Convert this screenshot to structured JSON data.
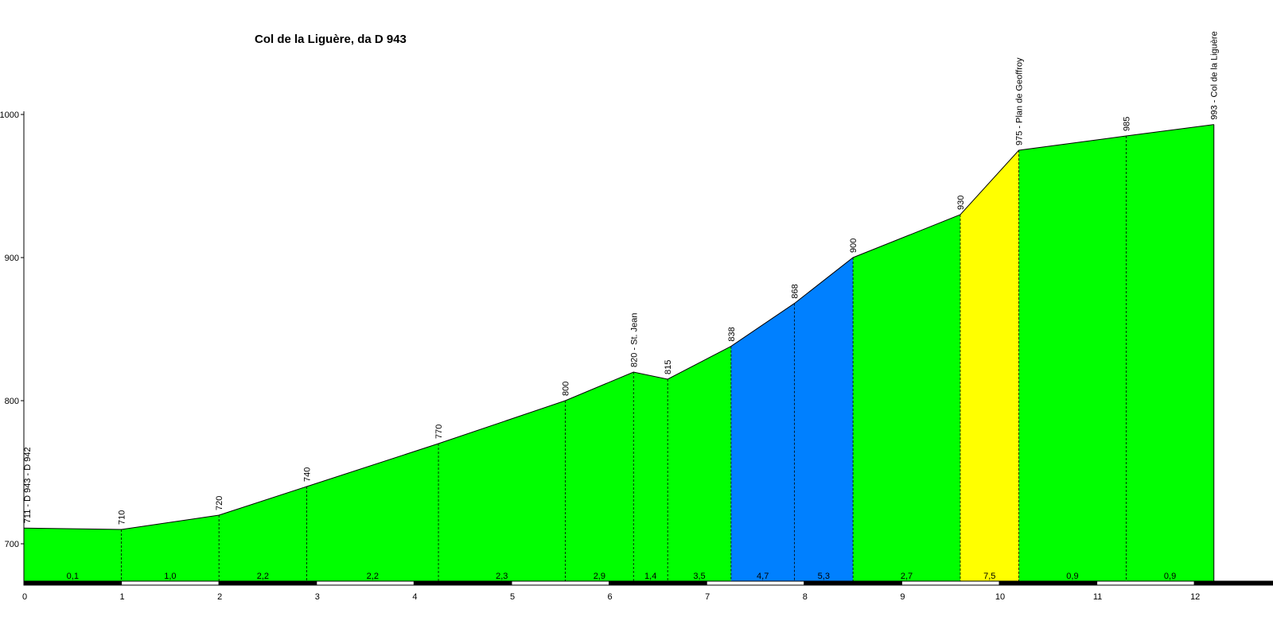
{
  "chart_data": {
    "type": "area",
    "title": "Col de la Liguère, da D 943",
    "xlabel": "",
    "ylabel": "",
    "xlim": [
      0,
      12.8
    ],
    "ylim": [
      674,
      1000
    ],
    "grid": false,
    "y_ticks": [
      "700",
      "800",
      "900",
      "1000"
    ],
    "x_ticks": [
      "0",
      "1",
      "2",
      "3",
      "4",
      "5",
      "6",
      "7",
      "8",
      "9",
      "10",
      "11",
      "12"
    ],
    "points": [
      {
        "x": 0,
        "y": 711,
        "label": "711 - D 943 - D 942"
      },
      {
        "x": 1.0,
        "y": 710,
        "label": "710"
      },
      {
        "x": 2.0,
        "y": 720,
        "label": "720"
      },
      {
        "x": 2.9,
        "y": 740,
        "label": "740"
      },
      {
        "x": 4.25,
        "y": 770,
        "label": "770"
      },
      {
        "x": 5.55,
        "y": 800,
        "label": "800"
      },
      {
        "x": 6.25,
        "y": 820,
        "label": "820 - St. Jean"
      },
      {
        "x": 6.6,
        "y": 815,
        "label": "815"
      },
      {
        "x": 7.25,
        "y": 838,
        "label": "838"
      },
      {
        "x": 7.9,
        "y": 868,
        "label": "868"
      },
      {
        "x": 8.5,
        "y": 900,
        "label": "900"
      },
      {
        "x": 9.6,
        "y": 930,
        "label": "930"
      },
      {
        "x": 10.2,
        "y": 975,
        "label": "975 - Plan de Geoffroy"
      },
      {
        "x": 11.3,
        "y": 985,
        "label": "985"
      },
      {
        "x": 12.2,
        "y": 993,
        "label": "993 - Col de la Liguère"
      }
    ],
    "segments": [
      {
        "gradient": "0,1",
        "color": "#00ff00"
      },
      {
        "gradient": "1,0",
        "color": "#00ff00"
      },
      {
        "gradient": "2,2",
        "color": "#00ff00"
      },
      {
        "gradient": "2,2",
        "color": "#00ff00"
      },
      {
        "gradient": "2,3",
        "color": "#00ff00"
      },
      {
        "gradient": "2,9",
        "color": "#00ff00"
      },
      {
        "gradient": "1,4",
        "color": "#00ff00"
      },
      {
        "gradient": "3,5",
        "color": "#00ff00"
      },
      {
        "gradient": "4,7",
        "color": "#0080ff"
      },
      {
        "gradient": "5,3",
        "color": "#0080ff"
      },
      {
        "gradient": "2,7",
        "color": "#00ff00"
      },
      {
        "gradient": "7,5",
        "color": "#ffff00"
      },
      {
        "gradient": "0,9",
        "color": "#00ff00"
      },
      {
        "gradient": "0,9",
        "color": "#00ff00"
      }
    ]
  }
}
